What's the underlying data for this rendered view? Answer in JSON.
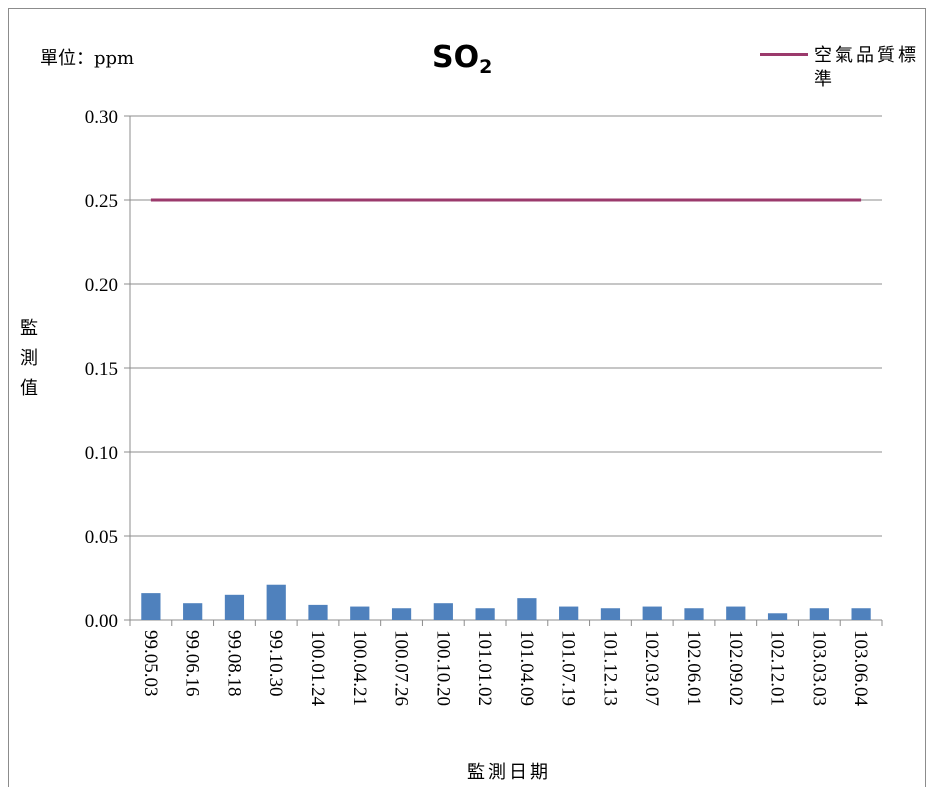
{
  "chart_data": {
    "type": "bar",
    "title": "SO",
    "title_subscript": "2",
    "unit_label": "單位：ppm",
    "ylabel": "監測值",
    "xlabel": "監測日期",
    "ylim": [
      0,
      0.3
    ],
    "yticks": [
      "0.00",
      "0.05",
      "0.10",
      "0.15",
      "0.20",
      "0.25",
      "0.30"
    ],
    "ytick_values": [
      0,
      0.05,
      0.1,
      0.15,
      0.2,
      0.25,
      0.3
    ],
    "grid": true,
    "legend_position": "top-right",
    "categories": [
      "99.05.03",
      "99.06.16",
      "99.08.18",
      "99.10.30",
      "100.01.24",
      "100.04.21",
      "100.07.26",
      "100.10.20",
      "101.01.02",
      "101.04.09",
      "101.07.19",
      "101.12.13",
      "102.03.07",
      "102.06.01",
      "102.09.02",
      "102.12.01",
      "103.03.03",
      "103.06.04"
    ],
    "series": [
      {
        "type": "bar",
        "color": "#4f81bd",
        "values": [
          0.016,
          0.01,
          0.015,
          0.021,
          0.009,
          0.008,
          0.007,
          0.01,
          0.007,
          0.013,
          0.008,
          0.007,
          0.008,
          0.007,
          0.008,
          0.004,
          0.007,
          0.007
        ]
      },
      {
        "name": "空氣品質標準",
        "type": "line",
        "color": "#9b3a6c",
        "values": [
          0.25,
          0.25,
          0.25,
          0.25,
          0.25,
          0.25,
          0.25,
          0.25,
          0.25,
          0.25,
          0.25,
          0.25,
          0.25,
          0.25,
          0.25,
          0.25,
          0.25,
          0.25
        ]
      }
    ]
  }
}
